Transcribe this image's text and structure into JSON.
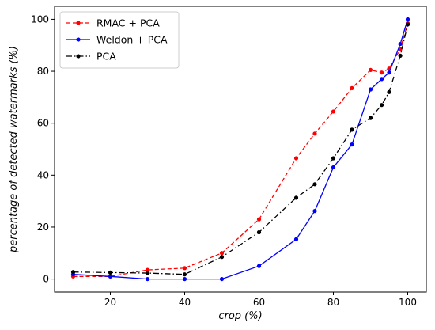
{
  "chart_data": {
    "type": "line",
    "title": "",
    "xlabel": "crop (%)",
    "ylabel": "percentage of detected watermarks (%)",
    "xlim": [
      5,
      105
    ],
    "ylim": [
      -5,
      105
    ],
    "xticks": [
      20,
      40,
      60,
      80,
      100
    ],
    "yticks": [
      0,
      20,
      40,
      60,
      80,
      100
    ],
    "x": [
      10,
      20,
      30,
      40,
      50,
      60,
      70,
      75,
      80,
      85,
      90,
      93,
      95,
      98,
      100
    ],
    "grid": false,
    "legend_position": "top-left",
    "series": [
      {
        "name": "RMAC + PCA",
        "color": "#ff0000",
        "linestyle": "dashed",
        "values": [
          1.0,
          1.0,
          3.5,
          4.2,
          10.0,
          23.0,
          46.5,
          56.0,
          64.5,
          73.5,
          80.5,
          79.5,
          81.0,
          88.5,
          98.5
        ]
      },
      {
        "name": "Weldon + PCA",
        "color": "#0000ff",
        "linestyle": "solid",
        "values": [
          1.8,
          1.0,
          0.0,
          0.0,
          0.0,
          5.0,
          15.3,
          26.2,
          43.0,
          51.8,
          73.0,
          77.0,
          79.5,
          90.5,
          100.0
        ]
      },
      {
        "name": "PCA",
        "color": "#000000",
        "linestyle": "dashdot",
        "values": [
          2.7,
          2.5,
          2.3,
          1.8,
          8.5,
          18.0,
          31.3,
          36.5,
          46.5,
          57.5,
          62.0,
          67.0,
          72.0,
          86.0,
          98.0
        ]
      }
    ]
  }
}
